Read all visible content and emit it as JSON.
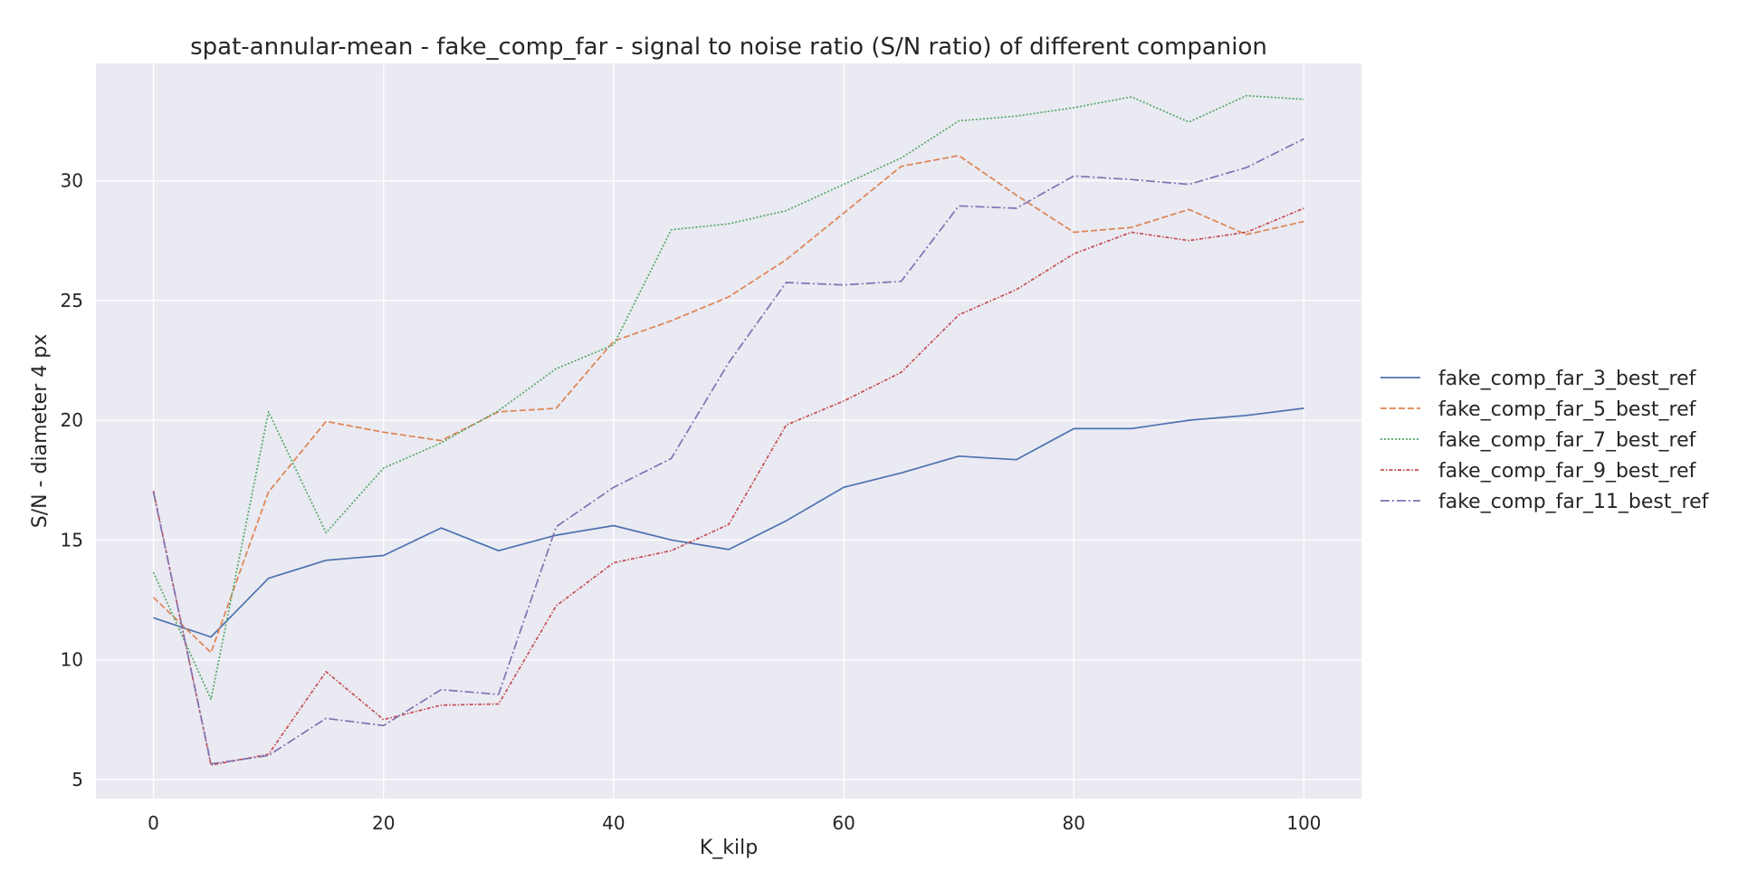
{
  "chart_data": {
    "type": "line",
    "title": "spat-annular-mean - fake_comp_far - signal to noise ratio (S/N ratio) of different companion",
    "xlabel": "K_kilp",
    "ylabel": "S/N - diameter 4 px",
    "xlim": [
      -5,
      105
    ],
    "ylim": [
      4.2,
      34.9
    ],
    "x_ticks": [
      0,
      20,
      40,
      60,
      80,
      100
    ],
    "y_ticks": [
      5,
      10,
      15,
      20,
      25,
      30
    ],
    "grid": true,
    "background": "#eaeaf2",
    "legend_position": "right",
    "x": [
      0,
      5,
      10,
      15,
      20,
      25,
      30,
      35,
      40,
      45,
      50,
      55,
      60,
      65,
      70,
      75,
      80,
      85,
      90,
      95,
      100
    ],
    "series": [
      {
        "name": "fake_comp_far_3_best_ref",
        "color": "#4c72b0",
        "dash": "solid",
        "values": [
          11.75,
          10.95,
          13.4,
          14.15,
          14.35,
          15.5,
          14.55,
          15.2,
          15.6,
          15.0,
          14.6,
          15.8,
          17.2,
          17.8,
          18.5,
          18.35,
          19.65,
          19.65,
          20.0,
          20.2,
          20.5
        ]
      },
      {
        "name": "fake_comp_far_5_best_ref",
        "color": "#dd8452",
        "dash": "dashed",
        "values": [
          12.6,
          10.3,
          17.0,
          19.95,
          19.5,
          19.15,
          20.35,
          20.5,
          23.3,
          24.15,
          25.15,
          26.7,
          28.65,
          30.6,
          31.05,
          29.4,
          27.85,
          28.05,
          28.8,
          27.75,
          28.3
        ]
      },
      {
        "name": "fake_comp_far_7_best_ref",
        "color": "#55a868",
        "dash": "dotted",
        "values": [
          13.65,
          8.35,
          20.35,
          15.3,
          18.0,
          19.05,
          20.4,
          22.15,
          23.15,
          27.95,
          28.2,
          28.75,
          29.85,
          30.95,
          32.5,
          32.7,
          33.05,
          33.5,
          32.45,
          33.55,
          33.4
        ]
      },
      {
        "name": "fake_comp_far_9_best_ref",
        "color": "#c44e52",
        "dash": "dashdot-fine",
        "values": [
          17.05,
          5.6,
          6.05,
          9.5,
          7.5,
          8.1,
          8.15,
          12.25,
          14.05,
          14.55,
          15.65,
          19.8,
          20.8,
          22.0,
          24.4,
          25.45,
          26.95,
          27.85,
          27.5,
          27.85,
          28.85
        ]
      },
      {
        "name": "fake_comp_far_11_best_ref",
        "color": "#8172b3",
        "dash": "dashdot",
        "values": [
          17.0,
          5.65,
          6.0,
          7.55,
          7.25,
          8.75,
          8.55,
          15.55,
          17.2,
          18.4,
          22.4,
          25.75,
          25.65,
          25.8,
          28.95,
          28.85,
          30.2,
          30.05,
          29.85,
          30.55,
          31.75
        ]
      }
    ]
  }
}
